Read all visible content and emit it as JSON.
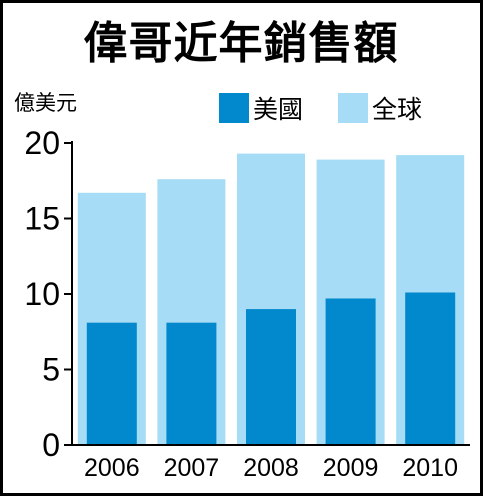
{
  "chart_data": {
    "type": "bar",
    "title": "偉哥近年銷售額",
    "ylabel": "億美元",
    "xlabel": "",
    "categories": [
      "2006",
      "2007",
      "2008",
      "2009",
      "2010"
    ],
    "ylim": [
      0,
      20
    ],
    "yticks": [
      "0",
      "5",
      "10",
      "15",
      "20"
    ],
    "grid": false,
    "legend_position": "top-right",
    "series": [
      {
        "name": "全球",
        "values": [
          16.7,
          17.6,
          19.3,
          18.9,
          19.2
        ]
      },
      {
        "name": "美國",
        "values": [
          8.1,
          8.1,
          9.0,
          9.7,
          10.1
        ]
      }
    ],
    "colors": {
      "global": "#a6dcf5",
      "us": "#0288cc",
      "axis": "#000000",
      "frame": "#000000"
    }
  }
}
